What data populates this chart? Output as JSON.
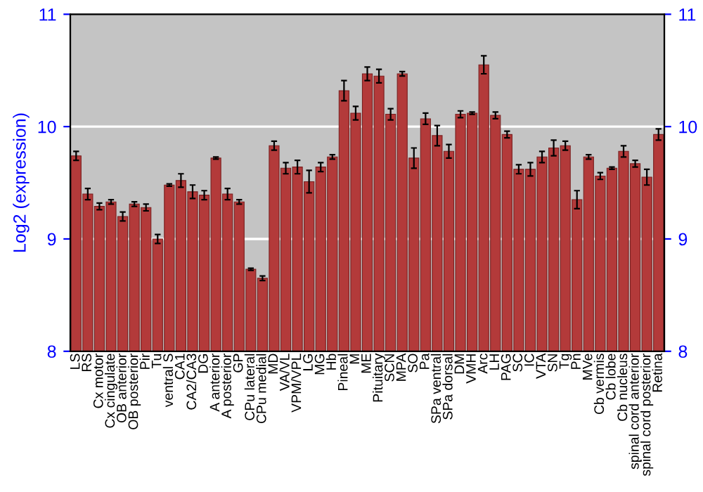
{
  "chart_data": {
    "type": "bar",
    "ylabel": "Log2 (expression)",
    "categories": [
      "LS",
      "RS",
      "Cx motor",
      "Cx cingulate",
      "OB anterior",
      "OB posterior",
      "Pir",
      "Tu",
      "ventral S",
      "CA1",
      "CA2/CA3",
      "DG",
      "A anterior",
      "A posterior",
      "GP",
      "CPu lateral",
      "CPu medial",
      "MD",
      "VA/VL",
      "VPM/VPL",
      "LG",
      "MG",
      "Hb",
      "Pineal",
      "M",
      "ME",
      "Pituitary",
      "SCN",
      "MPA",
      "SO",
      "Pa",
      "SPa ventral",
      "SPa dorsal",
      "DM",
      "VMH",
      "Arc",
      "LH",
      "PAG",
      "SC",
      "IC",
      "VTA",
      "SN",
      "Tg",
      "Pn",
      "MVe",
      "Cb vermis",
      "Cb lobe",
      "Cb nucleus",
      "spinal cord anterior",
      "spinal cord posterior",
      "Retina"
    ],
    "values": [
      9.74,
      9.4,
      9.29,
      9.33,
      9.2,
      9.31,
      9.28,
      9.0,
      9.48,
      9.52,
      9.42,
      9.39,
      9.72,
      9.4,
      9.33,
      8.73,
      8.65,
      9.83,
      9.63,
      9.64,
      9.51,
      9.64,
      9.73,
      10.32,
      10.12,
      10.47,
      10.45,
      10.11,
      10.47,
      9.72,
      10.07,
      9.92,
      9.78,
      10.11,
      10.12,
      10.55,
      10.1,
      9.93,
      9.62,
      9.62,
      9.73,
      9.81,
      9.83,
      9.35,
      9.73,
      9.56,
      9.63,
      9.78,
      9.67,
      9.55,
      9.93
    ],
    "errors": [
      0.04,
      0.05,
      0.03,
      0.02,
      0.04,
      0.02,
      0.03,
      0.04,
      0.01,
      0.06,
      0.06,
      0.04,
      0.01,
      0.05,
      0.02,
      0.01,
      0.02,
      0.04,
      0.05,
      0.06,
      0.1,
      0.04,
      0.02,
      0.09,
      0.06,
      0.06,
      0.06,
      0.05,
      0.02,
      0.09,
      0.05,
      0.09,
      0.06,
      0.03,
      0.01,
      0.08,
      0.03,
      0.03,
      0.04,
      0.06,
      0.05,
      0.07,
      0.04,
      0.08,
      0.02,
      0.03,
      0.01,
      0.05,
      0.03,
      0.07,
      0.05
    ],
    "color": "#b33a3a",
    "ylim": [
      8,
      11
    ],
    "yticks": [
      8,
      9,
      10,
      11
    ],
    "y2lim": [
      8,
      11
    ],
    "y2ticks": [
      8,
      9,
      10,
      11
    ],
    "grid": "y"
  }
}
